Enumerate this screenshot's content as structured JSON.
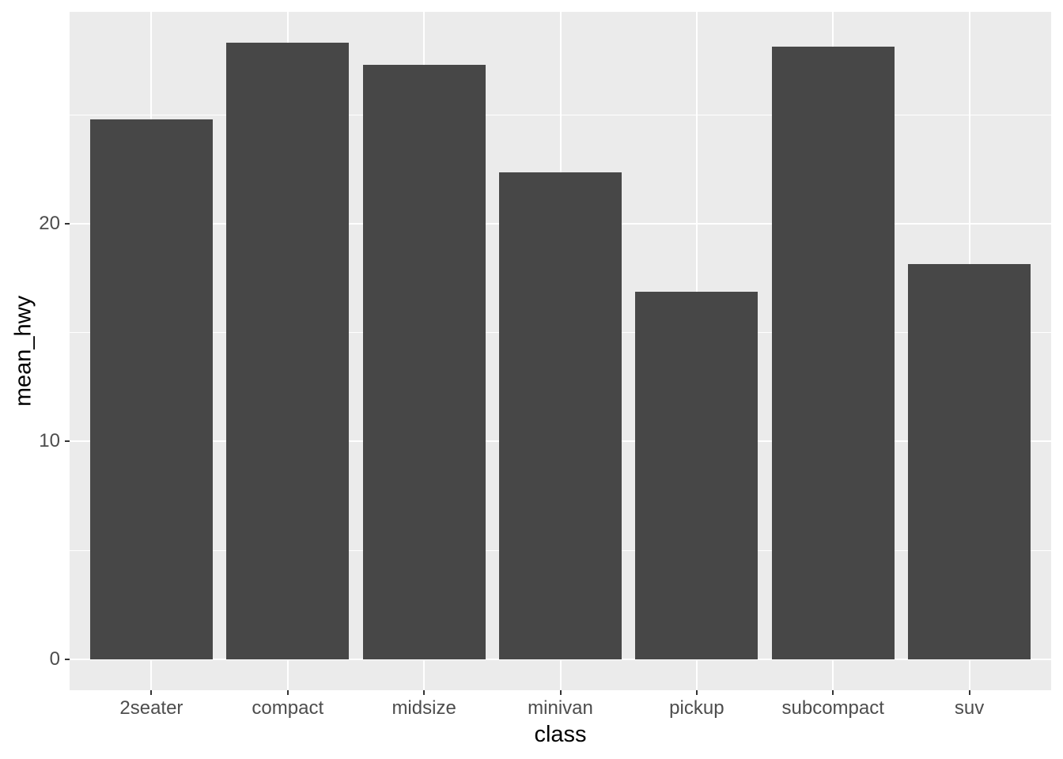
{
  "chart_data": {
    "type": "bar",
    "title": "",
    "categories": [
      "2seater",
      "compact",
      "midsize",
      "minivan",
      "pickup",
      "subcompact",
      "suv"
    ],
    "values": [
      24.8,
      28.3,
      27.29,
      22.36,
      16.88,
      28.14,
      18.13
    ],
    "xlabel": "class",
    "ylabel": "mean_hwy",
    "ylim": [
      -1.42,
      29.72
    ],
    "yticks": [
      0,
      10,
      20
    ],
    "ytick_labels": [
      "0",
      "10",
      "20"
    ],
    "yticks_minor": [
      5,
      15,
      25
    ],
    "bar_width_fraction": 0.9,
    "legend_position": "none",
    "grid": "on",
    "style": "ggplot2 theme_grey",
    "colors": {
      "bar_fill": "#474747",
      "panel_background": "#EBEBEB",
      "gridline": "#FFFFFF",
      "axis_text": "#4D4D4D",
      "axis_title": "#000000",
      "tick_mark": "#333333",
      "plot_background": "#FFFFFF"
    }
  }
}
